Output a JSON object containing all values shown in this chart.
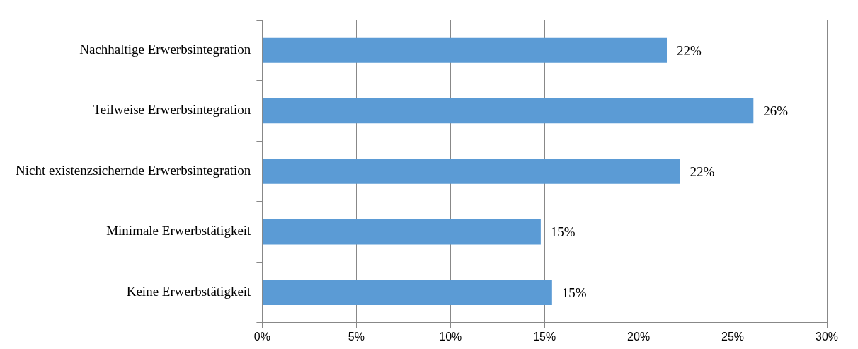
{
  "chart_data": {
    "type": "bar",
    "orientation": "horizontal",
    "categories": [
      "Nachhaltige Erwerbsintegration",
      "Teilweise Erwerbsintegration",
      "Nicht existenzsichernde Erwerbsintegration",
      "Minimale Erwerbstätigkeit",
      "Keine Erwerbstätigkeit"
    ],
    "values": [
      21.5,
      26.1,
      22.2,
      14.8,
      15.4
    ],
    "value_labels": [
      "22%",
      "26%",
      "22%",
      "15%",
      "15%"
    ],
    "color": "#5b9bd5",
    "xlim": [
      0,
      30
    ],
    "xticks": [
      {
        "value": 0,
        "label": "0%"
      },
      {
        "value": 5,
        "label": "5%"
      },
      {
        "value": 10,
        "label": "10%"
      },
      {
        "value": 15,
        "label": "15%"
      },
      {
        "value": 20,
        "label": "20%"
      },
      {
        "value": 25,
        "label": "25%"
      },
      {
        "value": 30,
        "label": "30%"
      }
    ],
    "grid": "x",
    "legend": false
  }
}
